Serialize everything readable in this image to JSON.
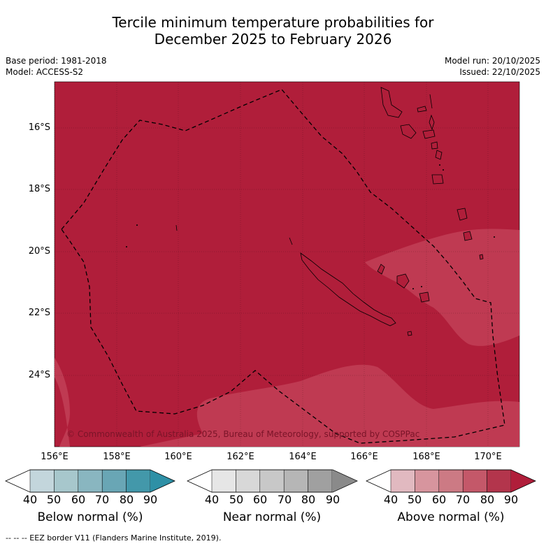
{
  "title_line1": "Tercile minimum temperature probabilities for",
  "title_line2": "December 2025 to February 2026",
  "meta": {
    "base_period": "Base period: 1981-2018",
    "model": "Model: ACCESS-S2",
    "model_run": "Model run: 20/10/2025",
    "issued": "Issued: 22/10/2025"
  },
  "map": {
    "lat_labels": [
      "16°S",
      "18°S",
      "20°S",
      "22°S",
      "24°S"
    ],
    "lon_labels": [
      "156°E",
      "158°E",
      "160°E",
      "162°E",
      "164°E",
      "166°E",
      "168°E",
      "170°E"
    ],
    "copyright": "© Commonwealth of Australia 2025, Bureau of Meteorology, supported by COSPPac",
    "colors": {
      "dominant": "#b01e3a",
      "lighter_zone": "#bf3a52",
      "border": "#000000"
    }
  },
  "colorbars": [
    {
      "label": "Below normal (%)",
      "ticks": [
        "40",
        "50",
        "60",
        "70",
        "80",
        "90"
      ],
      "colors": [
        "#ffffff",
        "#c3d6dc",
        "#a7c7cc",
        "#89b6c0",
        "#69a6b5",
        "#4398aa",
        "#2e90a6"
      ]
    },
    {
      "label": "Near normal (%)",
      "ticks": [
        "40",
        "50",
        "60",
        "70",
        "80",
        "90"
      ],
      "colors": [
        "#ffffff",
        "#e6e6e6",
        "#d8d8d8",
        "#c8c8c8",
        "#b6b6b6",
        "#a0a0a0",
        "#8a8a8a"
      ]
    },
    {
      "label": "Above normal (%)",
      "ticks": [
        "40",
        "50",
        "60",
        "70",
        "80",
        "90"
      ],
      "colors": [
        "#ffffff",
        "#e1b9c0",
        "#d7959e",
        "#cc7a84",
        "#c45869",
        "#b3354c",
        "#b01e3a"
      ]
    }
  ],
  "footer": "-- -- -- EEZ border V11 (Flanders Marine Institute, 2019)."
}
